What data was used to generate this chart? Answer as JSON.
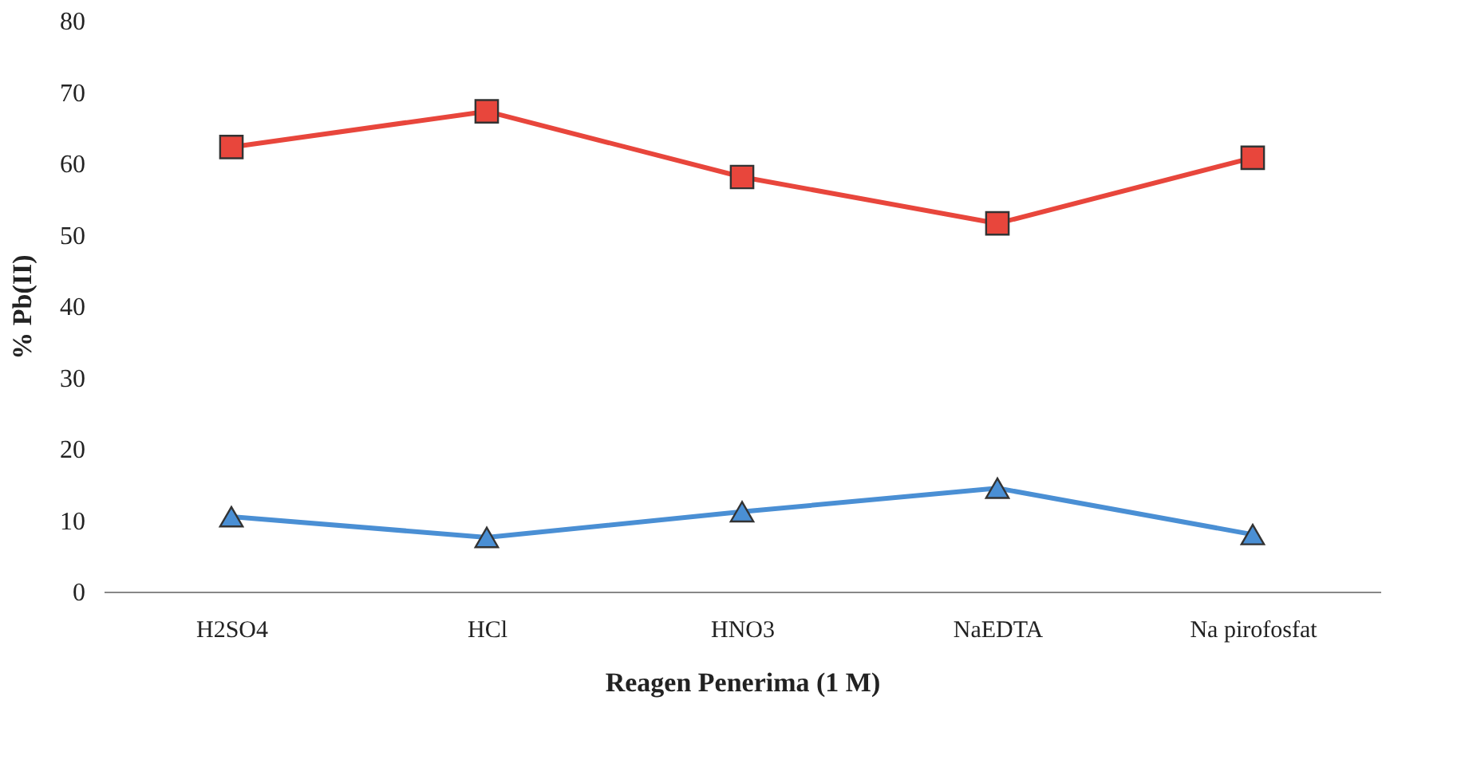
{
  "chart_data": {
    "type": "line",
    "xlabel": "Reagen Penerima (1 M)",
    "ylabel": "% Pb(II)",
    "categories": [
      "H2SO4",
      "HCl",
      "HNO3",
      "NaEDTA",
      "Na pirofosfat"
    ],
    "series": [
      {
        "color": "#e8463c",
        "marker": "square",
        "values": [
          62.3,
          67.3,
          58.1,
          51.6,
          60.8
        ]
      },
      {
        "color": "#4a8fd4",
        "marker": "triangle",
        "values": [
          10.5,
          7.6,
          11.2,
          14.5,
          8.0
        ]
      }
    ],
    "ylim": [
      0,
      80
    ],
    "yticks": [
      0,
      10,
      20,
      30,
      40,
      50,
      60,
      70,
      80
    ],
    "grid": false,
    "line_style": "solid"
  }
}
